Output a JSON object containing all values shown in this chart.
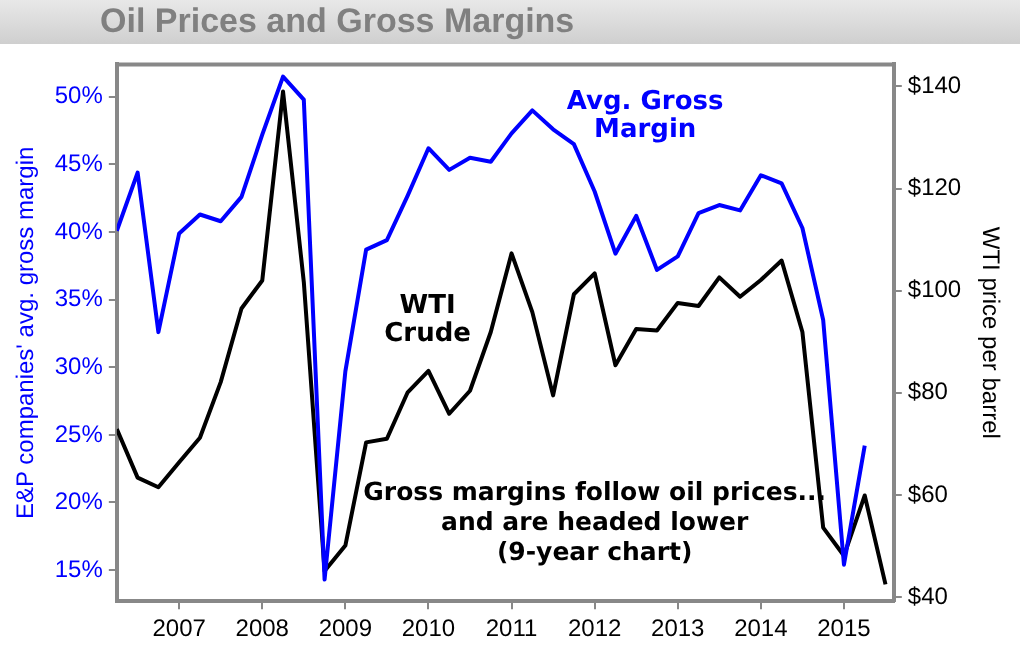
{
  "chart_data": {
    "type": "line",
    "title": "Oil Prices and Gross Margins",
    "ylabel": "E&P companies' avg. gross margin",
    "y2label": "WTI price per barrel",
    "x": [
      2006.25,
      2006.5,
      2006.75,
      2007,
      2007.25,
      2007.5,
      2007.75,
      2008,
      2008.25,
      2008.5,
      2008.75,
      2009,
      2009.25,
      2009.5,
      2009.75,
      2010,
      2010.25,
      2010.5,
      2010.75,
      2011,
      2011.25,
      2011.5,
      2011.75,
      2012,
      2012.25,
      2012.5,
      2012.75,
      2013,
      2013.25,
      2013.5,
      2013.75,
      2014,
      2014.25,
      2014.5,
      2014.75,
      2015,
      2015.25,
      2015.5
    ],
    "xlim": [
      2006.25,
      2015.6
    ],
    "xticks": [
      2007,
      2008,
      2009,
      2010,
      2011,
      2012,
      2013,
      2014,
      2015
    ],
    "ylim": [
      12.7,
      52.4
    ],
    "yticks": [
      {
        "value": 15,
        "label": "15%"
      },
      {
        "value": 20,
        "label": "20%"
      },
      {
        "value": 25,
        "label": "25%"
      },
      {
        "value": 30,
        "label": "30%"
      },
      {
        "value": 35,
        "label": "35%"
      },
      {
        "value": 40,
        "label": "40%"
      },
      {
        "value": 45,
        "label": "45%"
      },
      {
        "value": 50,
        "label": "50%"
      }
    ],
    "y2lim": [
      39.2,
      144.3
    ],
    "y2ticks": [
      {
        "value": 40,
        "label": "$40"
      },
      {
        "value": 60,
        "label": "$60"
      },
      {
        "value": 80,
        "label": "$80"
      },
      {
        "value": 100,
        "label": "$100"
      },
      {
        "value": 120,
        "label": "$120"
      },
      {
        "value": 140,
        "label": "$140"
      }
    ],
    "series": [
      {
        "name": "Avg. Gross Margin",
        "color": "#0000ff",
        "values": [
          40.1,
          44.4,
          32.6,
          39.9,
          41.3,
          40.8,
          42.6,
          47.2,
          51.5,
          49.8,
          14.3,
          29.7,
          38.7,
          39.4,
          42.7,
          46.2,
          44.6,
          45.5,
          45.2,
          47.3,
          49.0,
          47.6,
          46.5,
          43.0,
          38.4,
          41.2,
          37.2,
          38.2,
          41.4,
          42.0,
          41.6,
          44.2,
          43.6,
          40.3,
          33.5,
          15.4,
          24.2,
          null
        ]
      },
      {
        "name": "WTI Crude",
        "color": "#000000",
        "axis": "y2",
        "values": [
          72.9,
          63.4,
          61.5,
          66.4,
          71.2,
          82.1,
          96.5,
          102.0,
          139,
          101.7,
          45.1,
          50.1,
          70.3,
          71.0,
          80.1,
          84.3,
          75.9,
          80.4,
          91.9,
          107.3,
          95.8,
          79.5,
          99.3,
          103.4,
          85.4,
          92.5,
          92.2,
          97.6,
          97.0,
          102.6,
          98.8,
          102.1,
          105.9,
          91.9,
          53.6,
          48.1,
          59.9,
          42.5
        ]
      }
    ],
    "annotations": [
      "Gross margins follow oil prices...\nand are headed lower\n(9-year chart)"
    ],
    "legend": false,
    "grid": false,
    "marker": "none",
    "line_style": "solid"
  }
}
